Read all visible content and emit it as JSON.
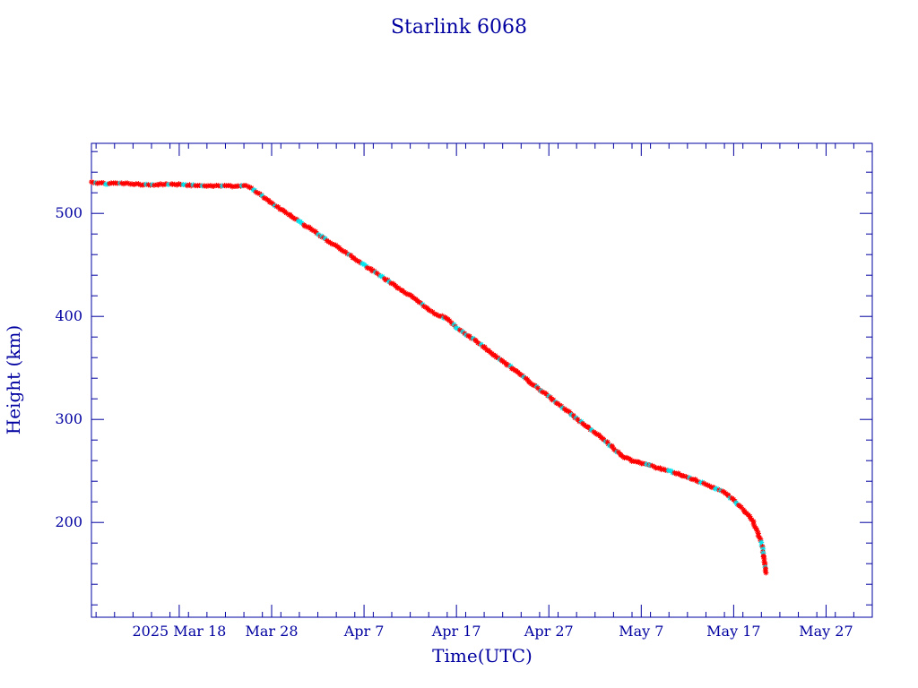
{
  "chart_data": {
    "type": "scatter",
    "title": "Starlink 6068",
    "xlabel": "Time(UTC)",
    "ylabel": "Height (km)",
    "x_tick_labels": [
      "2025 Mar 18",
      "Mar 28",
      "Apr  7",
      "Apr 17",
      "Apr 27",
      "May  7",
      "May 17",
      "May 27"
    ],
    "x_tick_dates": [
      "2025-03-18",
      "2025-03-28",
      "2025-04-07",
      "2025-04-17",
      "2025-04-27",
      "2025-05-07",
      "2025-05-17",
      "2025-05-27"
    ],
    "xlim": [
      "2025-03-08T12:00",
      "2025-06-01"
    ],
    "ylim": [
      108,
      568
    ],
    "y_ticks": [
      200,
      300,
      400,
      500
    ],
    "y_minor_step": 20,
    "grid": false,
    "colors": {
      "axes": "#0000a0",
      "line": "#000000",
      "primary_marker": "#ff0000",
      "secondary_marker": "#00e5ee"
    },
    "series": [
      {
        "marker": "asterisk",
        "points": [
          [
            "2025-03-08T12:00",
            530
          ],
          [
            "2025-03-10T00:00",
            529
          ],
          [
            "2025-03-12T00:00",
            529
          ],
          [
            "2025-03-14T00:00",
            528
          ],
          [
            "2025-03-16T00:00",
            528
          ],
          [
            "2025-03-18T00:00",
            528
          ],
          [
            "2025-03-20T00:00",
            527
          ],
          [
            "2025-03-22T00:00",
            527
          ],
          [
            "2025-03-24T00:00",
            526
          ],
          [
            "2025-03-25T00:00",
            527
          ],
          [
            "2025-03-25T12:00",
            526
          ],
          [
            "2025-03-26T12:00",
            520
          ],
          [
            "2025-03-28T00:00",
            510
          ],
          [
            "2025-03-30T00:00",
            498
          ],
          [
            "2025-04-01T00:00",
            486
          ],
          [
            "2025-04-03T00:00",
            474
          ],
          [
            "2025-04-05T00:00",
            462
          ],
          [
            "2025-04-07T00:00",
            450
          ],
          [
            "2025-04-09T00:00",
            438
          ],
          [
            "2025-04-11T00:00",
            426
          ],
          [
            "2025-04-13T00:00",
            414
          ],
          [
            "2025-04-14T00:00",
            406
          ],
          [
            "2025-04-15T00:00",
            401
          ],
          [
            "2025-04-16T00:00",
            398
          ],
          [
            "2025-04-17T00:00",
            389
          ],
          [
            "2025-04-19T00:00",
            377
          ],
          [
            "2025-04-21T00:00",
            363
          ],
          [
            "2025-04-23T00:00",
            350
          ],
          [
            "2025-04-25T00:00",
            336
          ],
          [
            "2025-04-27T00:00",
            322
          ],
          [
            "2025-04-29T00:00",
            308
          ],
          [
            "2025-05-01T00:00",
            294
          ],
          [
            "2025-05-03T00:00",
            280
          ],
          [
            "2025-05-05T00:00",
            264
          ],
          [
            "2025-05-06T00:00",
            260
          ],
          [
            "2025-05-08T00:00",
            255
          ],
          [
            "2025-05-10T00:00",
            250
          ],
          [
            "2025-05-12T00:00",
            244
          ],
          [
            "2025-05-14T00:00",
            237
          ],
          [
            "2025-05-16T00:00",
            229
          ],
          [
            "2025-05-17T00:00",
            222
          ],
          [
            "2025-05-18T00:00",
            213
          ],
          [
            "2025-05-19T00:00",
            202
          ],
          [
            "2025-05-19T12:00",
            193
          ],
          [
            "2025-05-20T00:00",
            180
          ],
          [
            "2025-05-20T06:00",
            168
          ],
          [
            "2025-05-20T12:00",
            151
          ]
        ]
      }
    ]
  }
}
